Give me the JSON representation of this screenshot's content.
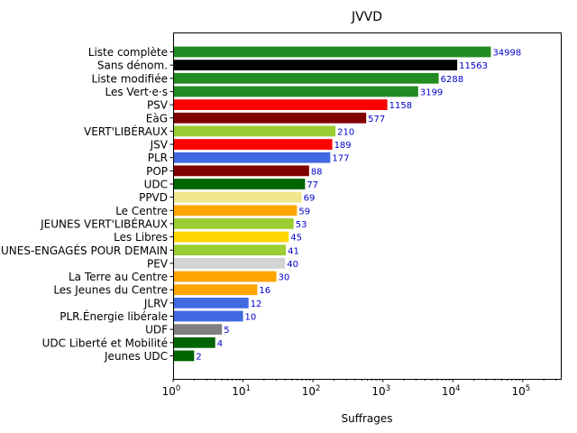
{
  "chart_data": {
    "type": "bar",
    "orientation": "horizontal",
    "title": "JVVD",
    "xlabel": "Suffrages",
    "ylabel": "",
    "xscale": "log",
    "xlim": [
      1,
      350000
    ],
    "xticks": [
      {
        "base": "10",
        "exp": "0"
      },
      {
        "base": "10",
        "exp": "1"
      },
      {
        "base": "10",
        "exp": "2"
      },
      {
        "base": "10",
        "exp": "3"
      },
      {
        "base": "10",
        "exp": "4"
      },
      {
        "base": "10",
        "exp": "5"
      }
    ],
    "grid": false,
    "categories": [
      "Liste complète",
      "Sans dénom.",
      "Liste modifiée",
      "Les Vert·e·s",
      "PSV",
      "EàG",
      "VERT'LIBÉRAUX",
      "JSV",
      "PLR",
      "POP",
      "UDC",
      "PPVD",
      "Le Centre",
      "JEUNES VERT'LIBÉRAUX",
      "Les Libres",
      "JEUNES-ENGAGÉS POUR DEMAIN",
      "PEV",
      "La Terre au Centre",
      "Les Jeunes du Centre",
      "JLRV",
      "PLR.Énergie libérale",
      "UDF",
      "UDC Liberté et Mobilité",
      "Jeunes UDC"
    ],
    "values": [
      34998,
      11563,
      6288,
      3199,
      1158,
      577,
      210,
      189,
      177,
      88,
      77,
      69,
      59,
      53,
      45,
      41,
      40,
      30,
      16,
      12,
      10,
      5,
      4,
      2
    ],
    "colors": [
      "#228b22",
      "#000000",
      "#228b22",
      "#228b22",
      "#ff0000",
      "#800000",
      "#9acd32",
      "#ff0000",
      "#4169e1",
      "#800000",
      "#006400",
      "#f0e68c",
      "#ffa500",
      "#9acd32",
      "#ffd700",
      "#9acd32",
      "#d3d3d3",
      "#ffa500",
      "#ffa500",
      "#4169e1",
      "#4169e1",
      "#808080",
      "#006400",
      "#006400"
    ],
    "label_color": "#0000cc"
  }
}
